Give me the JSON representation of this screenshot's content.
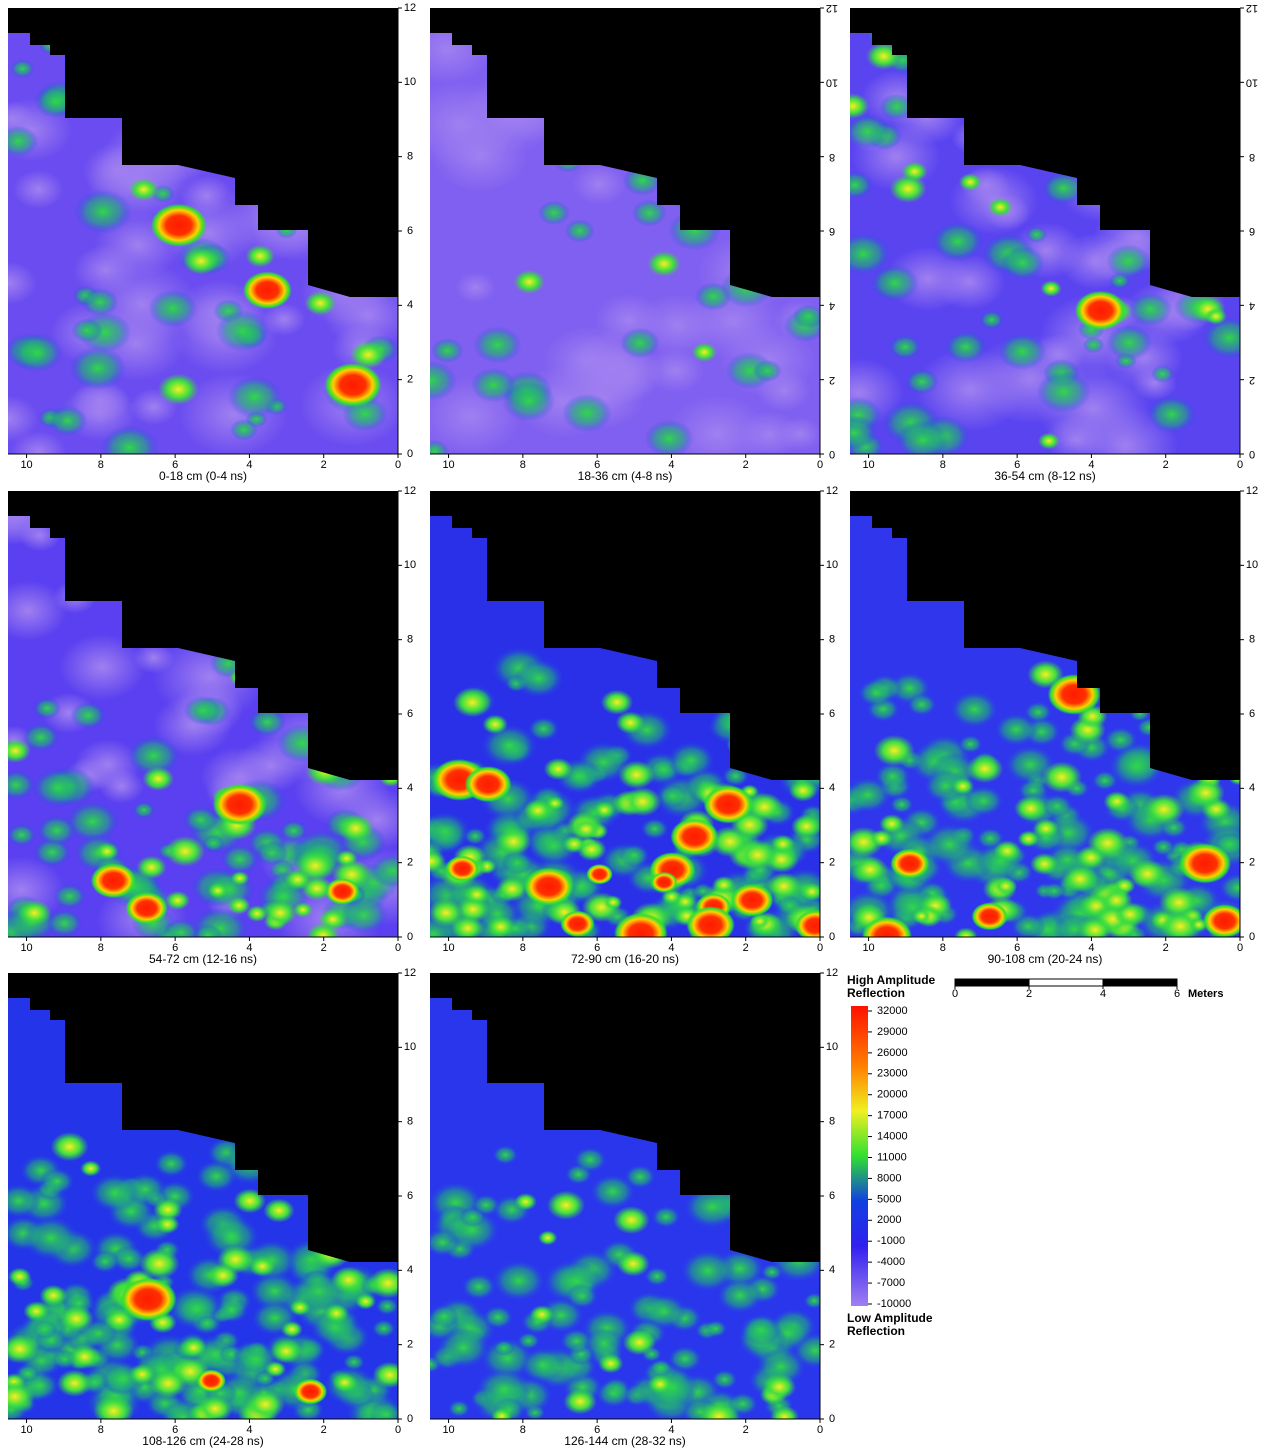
{
  "panels": [
    {
      "caption": "0-18 cm (0-4 ns)"
    },
    {
      "caption": "18-36 cm (4-8 ns)"
    },
    {
      "caption": "36-54 cm (8-12 ns)"
    },
    {
      "caption": "54-72 cm (12-16 ns)"
    },
    {
      "caption": "72-90 cm (16-20 ns)"
    },
    {
      "caption": "90-108 cm (20-24 ns)"
    },
    {
      "caption": "108-126 cm (24-28 ns)"
    },
    {
      "caption": "126-144 cm (28-32 ns)"
    }
  ],
  "x_axis": {
    "lim": [
      10.5,
      0
    ],
    "ticks": [
      10,
      8,
      6,
      4,
      2,
      0
    ]
  },
  "y_axis": {
    "lim": [
      0,
      12
    ],
    "ticks": [
      0,
      2,
      4,
      6,
      8,
      10,
      12
    ]
  },
  "legend": {
    "title": "High Amplitude Reflection",
    "bottom_label": "Low Amplitude Reflection",
    "lim": [
      -10000,
      32000
    ],
    "ticks": [
      32000,
      29000,
      26000,
      23000,
      20000,
      17000,
      14000,
      11000,
      8000,
      5000,
      2000,
      -1000,
      -4000,
      -7000,
      -10000
    ]
  },
  "scale_bar": {
    "ticks": [
      0,
      2,
      4,
      6
    ],
    "unit": "Meters"
  }
}
